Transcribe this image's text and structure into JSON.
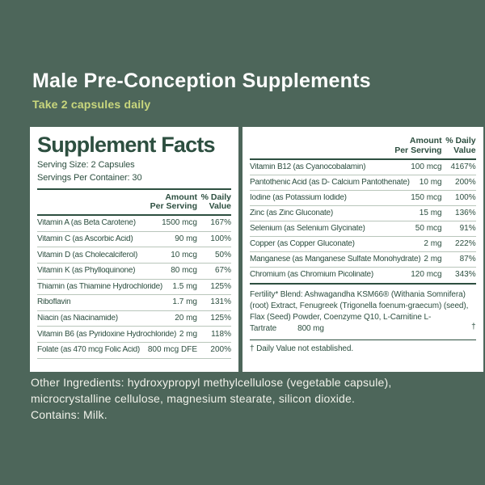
{
  "header": {
    "title": "Male Pre-Conception Supplements",
    "subtitle": "Take 2 capsules daily"
  },
  "panel": {
    "heading": "Supplement Facts",
    "serving_size": "Serving Size: 2 Capsules",
    "servings_per_container": "Servings Per Container: 30",
    "columns": {
      "amount_line1": "Amount",
      "amount_line2": "Per Serving",
      "dv_line1": "% Daily",
      "dv_line2": "Value"
    },
    "left_rows": [
      {
        "name": "Vitamin A (as Beta Carotene)",
        "amount": "1500 mcg",
        "dv": "167%"
      },
      {
        "name": "Vitamin C (as Ascorbic Acid)",
        "amount": "90 mg",
        "dv": "100%"
      },
      {
        "name": "Vitamin D (as Cholecalciferol)",
        "amount": "10 mcg",
        "dv": "50%"
      },
      {
        "name": "Vitamin K (as Phylloquinone)",
        "amount": "80 mcg",
        "dv": "67%"
      },
      {
        "name": "Thiamin (as Thiamine Hydrochloride)",
        "amount": "1.5 mg",
        "dv": "125%"
      },
      {
        "name": "Riboflavin",
        "amount": "1.7 mg",
        "dv": "131%"
      },
      {
        "name": "Niacin (as Niacinamide)",
        "amount": "20 mg",
        "dv": "125%"
      },
      {
        "name": "Vitamin B6 (as Pyridoxine Hydrochloride)",
        "amount": "2 mg",
        "dv": "118%"
      },
      {
        "name": "Folate (as 470 mcg Folic Acid)",
        "amount": "800 mcg DFE",
        "dv": "200%"
      }
    ],
    "right_rows": [
      {
        "name": "Vitamin B12 (as Cyanocobalamin)",
        "amount": "100 mcg",
        "dv": "4167%"
      },
      {
        "name": "Pantothenic Acid (as D- Calcium Pantothenate)",
        "amount": "10 mg",
        "dv": "200%"
      },
      {
        "name": "Iodine (as Potassium Iodide)",
        "amount": "150 mcg",
        "dv": "100%"
      },
      {
        "name": "Zinc (as Zinc Gluconate)",
        "amount": "15 mg",
        "dv": "136%"
      },
      {
        "name": "Selenium (as Selenium Glycinate)",
        "amount": "50 mcg",
        "dv": "91%"
      },
      {
        "name": "Copper (as Copper Gluconate)",
        "amount": "2 mg",
        "dv": "222%"
      },
      {
        "name": "Manganese (as Manganese Sulfate Monohydrate)",
        "amount": "2 mg",
        "dv": "87%"
      },
      {
        "name": "Chromium (as Chromium Picolinate)",
        "amount": "120 mcg",
        "dv": "343%"
      }
    ],
    "blend": {
      "text": "Fertility* Blend: Ashwagandha KSM66® (Withania Somnifera) (root) Extract, Fenugreek (Trigonella foenum-graecum) (seed), Flax (Seed) Powder, Coenzyme Q10, L-Carnitine L-Tartrate",
      "amount": "800 mg",
      "dv": "†"
    },
    "footnote": "† Daily Value not established."
  },
  "footer": {
    "other_ingredients": "Other Ingredients: hydroxypropyl methylcellulose (vegetable capsule), microcrystalline cellulose, magnesium stearate, silicon dioxide.",
    "contains": "Contains: Milk."
  },
  "colors": {
    "background": "#4d665a",
    "accent": "#c9d77d",
    "label_green": "#2d4f40",
    "rule_light": "#b9c6bb",
    "panel_bg": "#ffffff",
    "footer_text": "#f1f2ea",
    "title_text": "#ffffff"
  }
}
